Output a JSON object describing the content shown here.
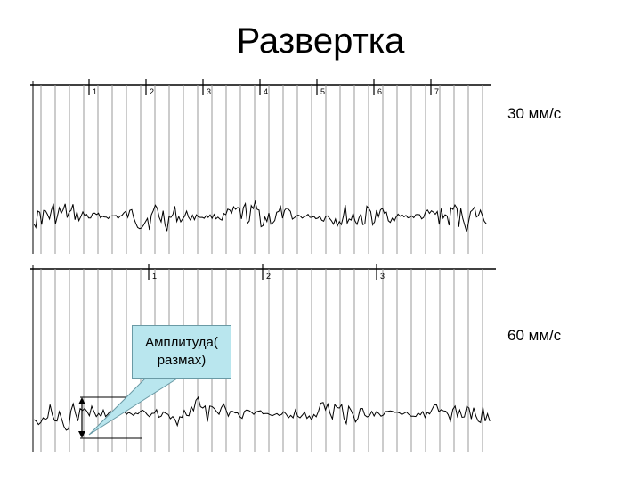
{
  "slide": {
    "title": "Развертка",
    "speed_top": "30 мм/с",
    "speed_bottom": "60 мм/с",
    "callout_line1": "Амплитуда(",
    "callout_line2": "размах)"
  },
  "strip_top": {
    "second_marks": [
      "1",
      "2",
      "3",
      "4",
      "5",
      "6",
      "7"
    ],
    "grid_color": "#9a9a9a",
    "trace_color": "#000000"
  },
  "strip_bottom": {
    "second_marks": [
      "1",
      "2",
      "3"
    ],
    "grid_color": "#9a9a9a",
    "trace_color": "#000000"
  },
  "callout_color": "#b9e6ee"
}
